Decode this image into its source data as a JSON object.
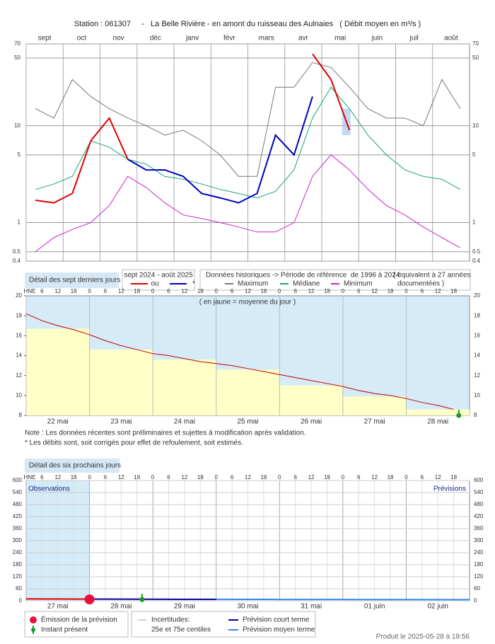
{
  "title": "Station : 061307     -   La Belle Rivière - en amont du ruisseau des Aulnaies   ( Débit moyen en m³/s )",
  "chart_data": [
    {
      "type": "line",
      "log_scale": true,
      "grid": true,
      "categories": [
        "sept",
        null,
        "oct",
        null,
        "nov",
        null,
        "déc",
        null,
        "janv",
        null,
        "févr",
        null,
        "mars",
        null,
        "avr",
        null,
        "mai",
        null,
        "juin",
        null,
        "juil",
        null,
        "août",
        null
      ],
      "ylim": [
        0.4,
        70
      ],
      "yticks": [
        0.4,
        0.5,
        1,
        5,
        10,
        50,
        70
      ],
      "detail_button": "Détail des sept derniers jours",
      "period_label": "sept 2024 - août 2025",
      "historical_label": "Données historiques -> Période de référence  de 1996 à 2024",
      "historical_note": [
        "( équivalent à 27 années",
        "documentées )"
      ],
      "series": [
        {
          "name": "ou",
          "color": "#dd0000",
          "values": [
            1.7,
            1.6,
            2,
            7,
            12,
            4.5,
            null,
            null,
            null,
            null,
            null,
            null,
            null,
            null,
            null,
            55,
            30,
            9,
            null,
            null,
            null,
            null,
            null,
            null
          ]
        },
        {
          "name": "*",
          "color": "#0000bb",
          "values": [
            null,
            null,
            null,
            null,
            null,
            4.5,
            3.5,
            3.5,
            3,
            2,
            1.8,
            1.6,
            2,
            8,
            5,
            20,
            null,
            null,
            null,
            null,
            null,
            null,
            null,
            null
          ]
        },
        {
          "name": "Maximum",
          "color": "#777777",
          "values": [
            15,
            12,
            30,
            20,
            15,
            12,
            10,
            8,
            9,
            7,
            5,
            3,
            3,
            25,
            25,
            45,
            40,
            25,
            15,
            12,
            12,
            10,
            30,
            15
          ]
        },
        {
          "name": "Médiane",
          "color": "#1aa37a",
          "values": [
            2.2,
            2.5,
            3,
            7,
            6,
            4.5,
            4,
            3,
            2.8,
            2.5,
            2.2,
            2,
            1.8,
            2.1,
            3.5,
            12,
            25,
            15,
            8,
            5,
            3.5,
            3,
            2.8,
            2.2
          ]
        },
        {
          "name": "Minimum",
          "color": "#cc22cc",
          "values": [
            0.5,
            0.7,
            0.85,
            1,
            1.5,
            3,
            2.3,
            1.6,
            1.2,
            1.1,
            1,
            0.9,
            0.8,
            0.8,
            1,
            3,
            5,
            3.5,
            2.2,
            1.5,
            1.2,
            0.9,
            0.7,
            0.55
          ]
        }
      ]
    },
    {
      "type": "line",
      "annotation": "( en jaune = moyenne du jour )",
      "hour_unit": "HNE",
      "hours": [
        0,
        6,
        12,
        18
      ],
      "categories": [
        "22 mai",
        "23 mai",
        "24 mai",
        "25 mai",
        "26 mai",
        "27 mai",
        "28 mai"
      ],
      "xlim": [
        0,
        7
      ],
      "ylim": [
        8,
        20
      ],
      "yticks": [
        8,
        10,
        12,
        14,
        16,
        18,
        20
      ],
      "present_time": 6.83,
      "daily_mean": {
        "color": "#ffffc8",
        "values": [
          16.7,
          14.6,
          13.6,
          12.6,
          11,
          9.9,
          8.6
        ]
      },
      "flow": {
        "color": "#c00000",
        "x": [
          0,
          0.25,
          0.5,
          0.75,
          1,
          1.25,
          1.5,
          1.75,
          2,
          2.25,
          2.5,
          2.75,
          3,
          3.25,
          3.5,
          3.75,
          4,
          4.25,
          4.5,
          4.75,
          5,
          5.25,
          5.5,
          5.75,
          6,
          6.25,
          6.5,
          6.75
        ],
        "values": [
          18.2,
          17.5,
          17,
          16.6,
          16.1,
          15.5,
          15,
          14.6,
          14.2,
          14,
          13.7,
          13.4,
          13.2,
          13,
          12.7,
          12.4,
          12.1,
          11.8,
          11.5,
          11.2,
          10.9,
          10.5,
          10.2,
          10,
          9.7,
          9.3,
          9,
          8.6
        ]
      }
    },
    {
      "type": "line",
      "detail_button": "Détail des six prochains jours",
      "hour_unit": "HNE",
      "hours": [
        0,
        6,
        12,
        18
      ],
      "categories": [
        "27 mai",
        "28 mai",
        "29 mai",
        "30 mai",
        "31 mai",
        "01 juin",
        "02 juin"
      ],
      "xlim": [
        0,
        7
      ],
      "ylim": [
        0,
        600
      ],
      "yticks": [
        0,
        60,
        120,
        180,
        240,
        300,
        360,
        420,
        480,
        540,
        600
      ],
      "observations_label": "Observations",
      "forecast_label": "Prévisions",
      "emission_time": 1,
      "present_time": 1.83,
      "observed": {
        "color": "#dd0000",
        "x": [
          0,
          0.25,
          0.5,
          0.75,
          1
        ],
        "values": [
          9.6,
          9.4,
          9.2,
          9,
          8.8
        ]
      },
      "series": [
        {
          "name": "Prévision court terme",
          "color": "#000099",
          "x": [
            1,
            1.5,
            2,
            2.5,
            3
          ],
          "values": [
            8.8,
            8.4,
            8,
            7.6,
            7.3
          ]
        },
        {
          "name": "Prévision moyen terme",
          "color": "#3388ee",
          "x": [
            3,
            4,
            5,
            6,
            7
          ],
          "values": [
            7.3,
            6.8,
            6.4,
            6,
            5.7
          ]
        }
      ],
      "legend": {
        "emission": "Émission de la prévision",
        "present": "Instant présent",
        "uncertainty": "Incertitudes:",
        "centiles": "25e et 75e centiles"
      }
    }
  ],
  "notes": [
    "Note : Les données récentes sont préliminaires et sujettes à modification après validation.",
    "* Les débits sont, soit corrigés pour effet de refoulement, soit estimés."
  ],
  "footer": "Produit le 2025-05-28 à 18:56"
}
